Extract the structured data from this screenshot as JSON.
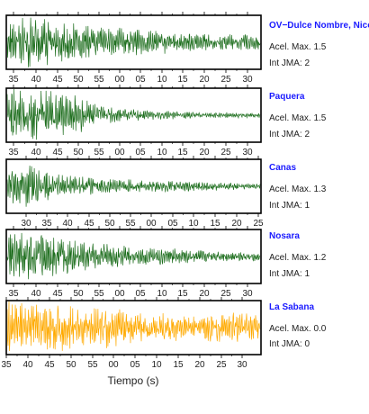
{
  "chart_data": {
    "type": "line",
    "xlabel": "Tiempo (s)",
    "panels": [
      {
        "station": "OV−Dulce Nombre, Nico",
        "acel_label": "Acel. Max. 1.5",
        "int_label": "Int JMA: 2",
        "color": "#1f6f1f",
        "tick_labels": [
          "35",
          "40",
          "45",
          "50",
          "55",
          "00",
          "05",
          "10",
          "15",
          "20",
          "25",
          "30"
        ],
        "amplitude_envelope": [
          0.9,
          0.95,
          0.8,
          0.65,
          0.55,
          0.5,
          0.45,
          0.4,
          0.35,
          0.3,
          0.3,
          0.28
        ]
      },
      {
        "station": "Paquera",
        "acel_label": "Acel. Max. 1.5",
        "int_label": "Int JMA: 2",
        "color": "#1f6f1f",
        "tick_labels": [
          "35",
          "40",
          "45",
          "50",
          "55",
          "00",
          "05",
          "10",
          "15",
          "20",
          "25",
          "30"
        ],
        "amplitude_envelope": [
          0.95,
          0.9,
          0.85,
          0.7,
          0.35,
          0.25,
          0.18,
          0.15,
          0.12,
          0.1,
          0.1,
          0.1
        ]
      },
      {
        "station": "Canas",
        "acel_label": "Acel. Max. 1.3",
        "int_label": "Int JMA: 1",
        "color": "#1f6f1f",
        "tick_labels": [
          "30",
          "35",
          "40",
          "45",
          "50",
          "55",
          "00",
          "05",
          "10",
          "15",
          "20",
          "25"
        ],
        "amplitude_envelope": [
          0.5,
          1.0,
          0.45,
          0.35,
          0.3,
          0.25,
          0.22,
          0.2,
          0.18,
          0.15,
          0.12,
          0.1
        ]
      },
      {
        "station": "Nosara",
        "acel_label": "Acel. Max. 1.2",
        "int_label": "Int JMA: 1",
        "color": "#1f6f1f",
        "tick_labels": [
          "35",
          "40",
          "45",
          "50",
          "55",
          "00",
          "05",
          "10",
          "15",
          "20",
          "25",
          "30"
        ],
        "amplitude_envelope": [
          0.95,
          0.9,
          0.75,
          0.6,
          0.5,
          0.4,
          0.35,
          0.3,
          0.25,
          0.2,
          0.18,
          0.15
        ]
      },
      {
        "station": "La Sabana",
        "acel_label": "Acel. Max. 0.0",
        "int_label": "Int JMA: 0",
        "color": "#ffaa00",
        "tick_labels": [
          "35",
          "40",
          "45",
          "50",
          "55",
          "00",
          "05",
          "10",
          "15",
          "20",
          "25",
          "30"
        ],
        "amplitude_envelope": [
          0.95,
          0.95,
          0.85,
          0.8,
          0.75,
          0.7,
          0.55,
          0.5,
          0.45,
          0.5,
          0.55,
          0.5
        ]
      }
    ]
  }
}
